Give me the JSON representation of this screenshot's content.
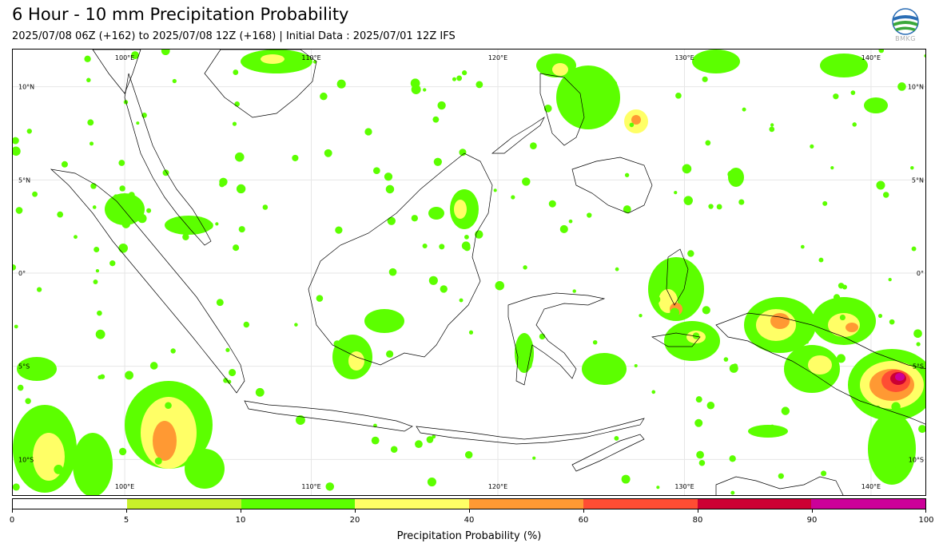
{
  "title": "6 Hour - 10 mm Precipitation Probability",
  "subtitle": "2025/07/08 06Z (+162) to 2025/07/08 12Z (+168) | Initial Data : 2025/07/01 12Z IFS",
  "logo": {
    "text": "BMKG",
    "icon": "bmkg-logo-icon"
  },
  "map": {
    "lon_labels": [
      "100°E",
      "110°E",
      "120°E",
      "130°E",
      "140°E"
    ],
    "lat_labels": [
      "10°N",
      "5°N",
      "0°",
      "5°S",
      "10°S"
    ],
    "lon_range": [
      94,
      143
    ],
    "lat_range": [
      -12,
      12
    ]
  },
  "colorbar": {
    "label": "Precipitation Probability (%)",
    "ticks": [
      "0",
      "5",
      "10",
      "20",
      "40",
      "60",
      "80",
      "90",
      "100"
    ],
    "colors": [
      "#ffffff",
      "#c8f02a",
      "#5cff00",
      "#ffff66",
      "#ff9933",
      "#ff4d33",
      "#cc0033",
      "#cc0099"
    ]
  }
}
